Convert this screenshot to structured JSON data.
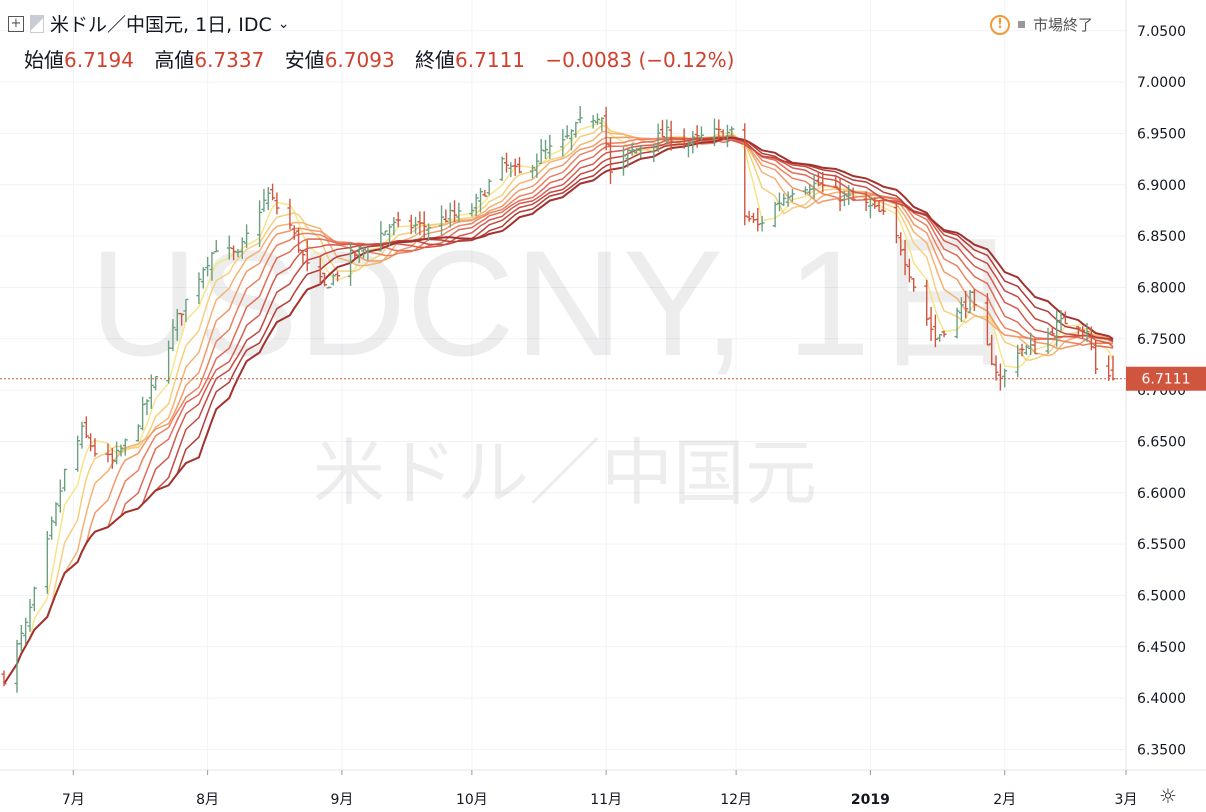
{
  "header": {
    "symbol_title": "米ドル／中国元, 1日, IDC",
    "open_label": "始値",
    "open": "6.7194",
    "high_label": "高値",
    "high": "6.7337",
    "low_label": "安値",
    "low": "6.7093",
    "close_label": "終値",
    "close": "6.7111",
    "change": "−0.0083 (−0.12%)",
    "market_status": "市場終了"
  },
  "watermark": {
    "ticker": "USDCNY, 1日",
    "name": "米ドル／中国元"
  },
  "colors": {
    "up": "#6a9f7f",
    "down": "#d0553f",
    "last_price_bg": "#d0553f",
    "ribbon": [
      "#f6e689",
      "#f6cf7d",
      "#f4b373",
      "#f19a6a",
      "#ec8160",
      "#e26c58",
      "#d55b4e",
      "#c54b42",
      "#b43d38",
      "#a3322e"
    ]
  },
  "chart_data": {
    "type": "candlestick",
    "title": "米ドル／中国元, 1日, IDC",
    "x_axis": {
      "type": "date",
      "range": [
        "2018-06-15",
        "2019-03-01"
      ],
      "ticks": [
        {
          "date": "2018-07-01",
          "label": "7月"
        },
        {
          "date": "2018-08-01",
          "label": "8月"
        },
        {
          "date": "2018-09-01",
          "label": "9月"
        },
        {
          "date": "2018-10-01",
          "label": "10月"
        },
        {
          "date": "2018-11-01",
          "label": "11月"
        },
        {
          "date": "2018-12-01",
          "label": "12月"
        },
        {
          "date": "2019-01-01",
          "label": "2019"
        },
        {
          "date": "2019-02-01",
          "label": "2月"
        },
        {
          "date": "2019-03-01",
          "label": "3月"
        }
      ]
    },
    "y_axis": {
      "range": [
        6.33,
        7.08
      ],
      "ticks": [
        "6.3500",
        "6.4000",
        "6.4500",
        "6.5000",
        "6.5500",
        "6.6000",
        "6.6500",
        "6.7000",
        "6.7500",
        "6.8000",
        "6.8500",
        "6.9000",
        "6.9500",
        "7.0000",
        "7.0500"
      ],
      "position": "right"
    },
    "grid": true,
    "last_price": "6.7111",
    "price_anchors": [
      [
        "2018-06-15",
        6.42
      ],
      [
        "2018-06-20",
        6.47
      ],
      [
        "2018-06-25",
        6.55
      ],
      [
        "2018-06-29",
        6.62
      ],
      [
        "2018-07-03",
        6.66
      ],
      [
        "2018-07-06",
        6.64
      ],
      [
        "2018-07-10",
        6.63
      ],
      [
        "2018-07-15",
        6.66
      ],
      [
        "2018-07-20",
        6.71
      ],
      [
        "2018-07-25",
        6.77
      ],
      [
        "2018-07-31",
        6.82
      ],
      [
        "2018-08-03",
        6.84
      ],
      [
        "2018-08-08",
        6.83
      ],
      [
        "2018-08-12",
        6.87
      ],
      [
        "2018-08-15",
        6.89
      ],
      [
        "2018-08-20",
        6.86
      ],
      [
        "2018-08-24",
        6.82
      ],
      [
        "2018-08-28",
        6.8
      ],
      [
        "2018-09-03",
        6.83
      ],
      [
        "2018-09-07",
        6.84
      ],
      [
        "2018-09-12",
        6.86
      ],
      [
        "2018-09-17",
        6.86
      ],
      [
        "2018-09-21",
        6.86
      ],
      [
        "2018-09-26",
        6.87
      ],
      [
        "2018-09-30",
        6.87
      ],
      [
        "2018-10-08",
        6.92
      ],
      [
        "2018-10-12",
        6.91
      ],
      [
        "2018-10-17",
        6.93
      ],
      [
        "2018-10-22",
        6.94
      ],
      [
        "2018-10-26",
        6.96
      ],
      [
        "2018-10-31",
        6.97
      ],
      [
        "2018-11-02",
        6.91
      ],
      [
        "2018-11-06",
        6.93
      ],
      [
        "2018-11-10",
        6.94
      ],
      [
        "2018-11-15",
        6.95
      ],
      [
        "2018-11-20",
        6.94
      ],
      [
        "2018-11-25",
        6.95
      ],
      [
        "2018-11-30",
        6.95
      ],
      [
        "2018-12-03",
        6.87
      ],
      [
        "2018-12-06",
        6.86
      ],
      [
        "2018-12-10",
        6.88
      ],
      [
        "2018-12-15",
        6.9
      ],
      [
        "2018-12-20",
        6.9
      ],
      [
        "2018-12-25",
        6.89
      ],
      [
        "2018-12-31",
        6.88
      ],
      [
        "2019-01-04",
        6.87
      ],
      [
        "2019-01-08",
        6.84
      ],
      [
        "2019-01-12",
        6.79
      ],
      [
        "2019-01-16",
        6.75
      ],
      [
        "2019-01-20",
        6.77
      ],
      [
        "2019-01-24",
        6.79
      ],
      [
        "2019-01-28",
        6.74
      ],
      [
        "2019-01-31",
        6.71
      ],
      [
        "2019-02-04",
        6.74
      ],
      [
        "2019-02-08",
        6.74
      ],
      [
        "2019-02-12",
        6.76
      ],
      [
        "2019-02-16",
        6.77
      ],
      [
        "2019-02-20",
        6.76
      ],
      [
        "2019-02-22",
        6.72
      ],
      [
        "2019-02-26",
        6.7111
      ]
    ],
    "moving_average_ribbon": {
      "count": 10,
      "lags": [
        5,
        8,
        11,
        14,
        17,
        20,
        23,
        26,
        29,
        32
      ]
    }
  }
}
